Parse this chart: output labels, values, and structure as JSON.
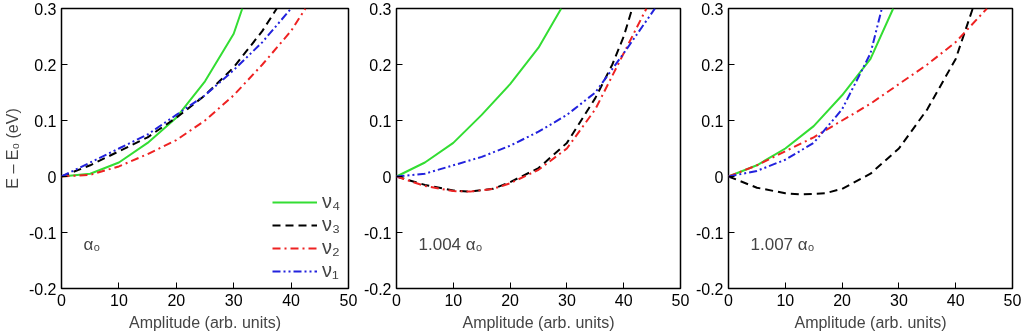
{
  "chart_data": [
    {
      "type": "line",
      "xlabel": "Amplitude (arb. units)",
      "ylabel": "E – E₀ (eV)",
      "annotations": [
        "α₀"
      ],
      "xlim": [
        0,
        50
      ],
      "xticks": [
        0,
        10,
        20,
        30,
        40,
        50
      ],
      "ylim": [
        -0.2,
        0.3
      ],
      "yticks": [
        -0.2,
        -0.1,
        0,
        0.1,
        0.2,
        0.3
      ],
      "grid": false,
      "legend": "bottom right",
      "series": [
        {
          "name": "ν₄",
          "color": "#33dd33",
          "line_style": "solid",
          "x": [
            0,
            5,
            10,
            15,
            20,
            25,
            30,
            31.5
          ],
          "values": [
            0,
            0.005,
            0.025,
            0.06,
            0.105,
            0.17,
            0.255,
            0.3
          ]
        },
        {
          "name": "ν₃",
          "color": "#000000",
          "line_style": "dashed",
          "x": [
            0,
            5,
            10,
            15,
            20,
            25,
            30,
            35,
            37.5
          ],
          "values": [
            0,
            0.02,
            0.045,
            0.07,
            0.105,
            0.145,
            0.195,
            0.26,
            0.3
          ]
        },
        {
          "name": "ν₂",
          "color": "#ee2222",
          "line_style": "dashdot",
          "x": [
            0,
            5,
            10,
            15,
            20,
            25,
            30,
            35,
            40,
            42.5
          ],
          "values": [
            0,
            0.003,
            0.018,
            0.04,
            0.065,
            0.1,
            0.145,
            0.2,
            0.26,
            0.3
          ]
        },
        {
          "name": "ν₁",
          "color": "#2222dd",
          "line_style": "dashdotdot",
          "x": [
            0,
            5,
            10,
            15,
            20,
            25,
            30,
            35,
            40
          ],
          "values": [
            0,
            0.025,
            0.05,
            0.075,
            0.11,
            0.145,
            0.19,
            0.24,
            0.3
          ]
        }
      ]
    },
    {
      "type": "line",
      "xlabel": "Amplitude (arb. units)",
      "annotations": [
        "1.004 α₀"
      ],
      "xlim": [
        0,
        50
      ],
      "xticks": [
        0,
        10,
        20,
        30,
        40,
        50
      ],
      "ylim": [
        -0.2,
        0.3
      ],
      "yticks": [
        -0.2,
        -0.1,
        0,
        0.1,
        0.2,
        0.3
      ],
      "grid": false,
      "series": [
        {
          "color": "#33dd33",
          "line_style": "solid",
          "x": [
            0,
            5,
            10,
            15,
            20,
            25,
            29
          ],
          "values": [
            0,
            0.025,
            0.06,
            0.11,
            0.165,
            0.23,
            0.3
          ]
        },
        {
          "color": "#000000",
          "line_style": "dashed",
          "x": [
            0,
            5,
            10,
            13,
            17,
            20,
            25,
            30,
            35,
            38,
            40,
            41.5
          ],
          "values": [
            0,
            -0.015,
            -0.025,
            -0.027,
            -0.022,
            -0.01,
            0.015,
            0.06,
            0.14,
            0.2,
            0.25,
            0.3
          ]
        },
        {
          "color": "#ee2222",
          "line_style": "dashdot",
          "x": [
            0,
            5,
            10,
            13,
            17,
            20,
            25,
            30,
            35,
            40,
            44
          ],
          "values": [
            0,
            -0.017,
            -0.026,
            -0.027,
            -0.022,
            -0.012,
            0.012,
            0.05,
            0.12,
            0.22,
            0.3
          ]
        },
        {
          "color": "#2222dd",
          "line_style": "dashdotdot",
          "x": [
            0,
            5,
            10,
            15,
            20,
            25,
            30,
            35,
            40,
            45.5
          ],
          "values": [
            0,
            0.005,
            0.02,
            0.035,
            0.055,
            0.08,
            0.11,
            0.15,
            0.22,
            0.3
          ]
        }
      ]
    },
    {
      "type": "line",
      "xlabel": "Amplitude (arb. units)",
      "annotations": [
        "1.007 α₀"
      ],
      "xlim": [
        0,
        50
      ],
      "xticks": [
        0,
        10,
        20,
        30,
        40,
        50
      ],
      "ylim": [
        -0.2,
        0.3
      ],
      "yticks": [
        -0.2,
        -0.1,
        0,
        0.1,
        0.2,
        0.3
      ],
      "grid": false,
      "series": [
        {
          "color": "#33dd33",
          "line_style": "solid",
          "x": [
            0,
            5,
            10,
            15,
            20,
            25,
            29
          ],
          "values": [
            0,
            0.02,
            0.05,
            0.09,
            0.145,
            0.21,
            0.3
          ]
        },
        {
          "color": "#000000",
          "line_style": "dashed",
          "x": [
            0,
            5,
            10,
            13,
            17,
            20,
            25,
            30,
            35,
            40,
            43
          ],
          "values": [
            0,
            -0.02,
            -0.03,
            -0.032,
            -0.03,
            -0.022,
            0.005,
            0.05,
            0.12,
            0.21,
            0.3
          ]
        },
        {
          "color": "#ee2222",
          "line_style": "dashdot",
          "x": [
            0,
            5,
            10,
            15,
            20,
            25,
            30,
            35,
            40,
            45.5
          ],
          "values": [
            0,
            0.02,
            0.045,
            0.07,
            0.1,
            0.13,
            0.165,
            0.2,
            0.24,
            0.3
          ]
        },
        {
          "color": "#2222dd",
          "line_style": "dashdotdot",
          "x": [
            0,
            5,
            10,
            15,
            20,
            25,
            27
          ],
          "values": [
            0,
            0.01,
            0.03,
            0.06,
            0.12,
            0.22,
            0.3
          ]
        }
      ]
    }
  ]
}
